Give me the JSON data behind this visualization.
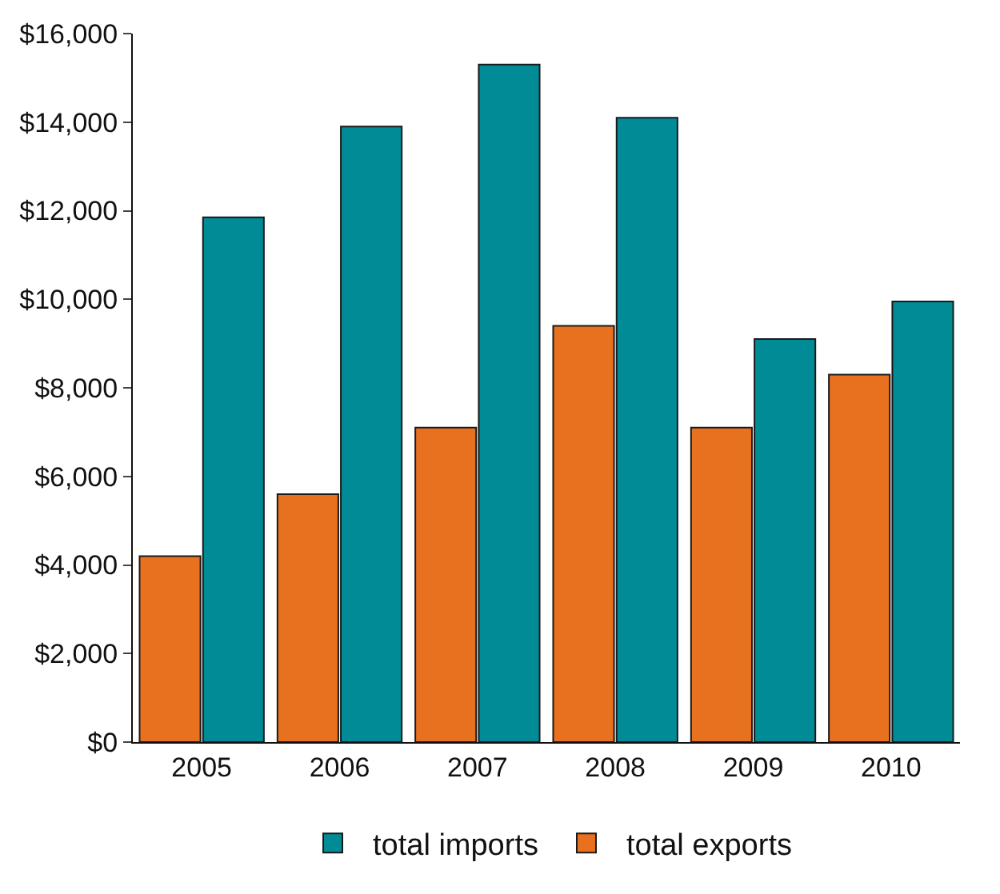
{
  "chart_data": {
    "type": "bar",
    "categories": [
      "2005",
      "2006",
      "2007",
      "2008",
      "2009",
      "2010"
    ],
    "series": [
      {
        "name": "total exports",
        "color": "#e8711f",
        "values": [
          4200,
          5600,
          7100,
          9400,
          7100,
          8300
        ]
      },
      {
        "name": "total imports",
        "color": "#008b96",
        "values": [
          11850,
          13900,
          15300,
          14100,
          9100,
          9950
        ]
      }
    ],
    "ylim": [
      0,
      16000
    ],
    "yticks": [
      {
        "value": 0,
        "label": "$0"
      },
      {
        "value": 2000,
        "label": "$2,000"
      },
      {
        "value": 4000,
        "label": "$4,000"
      },
      {
        "value": 6000,
        "label": "$6,000"
      },
      {
        "value": 8000,
        "label": "$8,000"
      },
      {
        "value": 10000,
        "label": "$10,000"
      },
      {
        "value": 12000,
        "label": "$12,000"
      },
      {
        "value": 14000,
        "label": "$14,000"
      },
      {
        "value": 16000,
        "label": "$16,000"
      }
    ],
    "legend": "bottom"
  }
}
